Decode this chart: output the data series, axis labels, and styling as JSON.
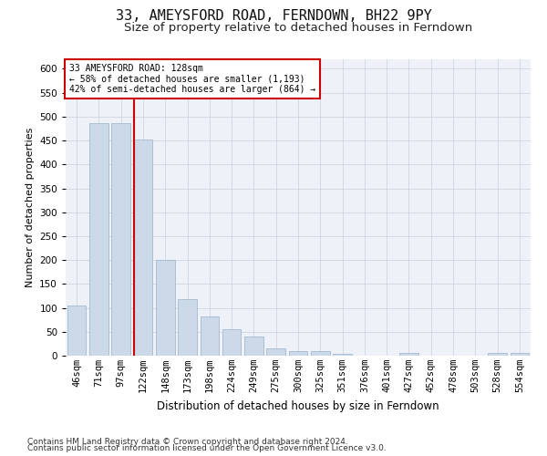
{
  "title1": "33, AMEYSFORD ROAD, FERNDOWN, BH22 9PY",
  "title2": "Size of property relative to detached houses in Ferndown",
  "xlabel": "Distribution of detached houses by size in Ferndown",
  "ylabel": "Number of detached properties",
  "categories": [
    "46sqm",
    "71sqm",
    "97sqm",
    "122sqm",
    "148sqm",
    "173sqm",
    "198sqm",
    "224sqm",
    "249sqm",
    "275sqm",
    "300sqm",
    "325sqm",
    "351sqm",
    "376sqm",
    "401sqm",
    "427sqm",
    "452sqm",
    "478sqm",
    "503sqm",
    "528sqm",
    "554sqm"
  ],
  "values": [
    105,
    487,
    487,
    452,
    200,
    119,
    82,
    56,
    40,
    15,
    10,
    10,
    3,
    0,
    0,
    5,
    0,
    0,
    0,
    6,
    6
  ],
  "bar_color": "#ccd9e8",
  "bar_edge_color": "#9ab0c8",
  "vline_color": "#cc0000",
  "annotation_text": "33 AMEYSFORD ROAD: 128sqm\n← 58% of detached houses are smaller (1,193)\n42% of semi-detached houses are larger (864) →",
  "annotation_box_color": "#ffffff",
  "annotation_box_edge": "#cc0000",
  "footer1": "Contains HM Land Registry data © Crown copyright and database right 2024.",
  "footer2": "Contains public sector information licensed under the Open Government Licence v3.0.",
  "ylim_max": 620,
  "yticks": [
    0,
    50,
    100,
    150,
    200,
    250,
    300,
    350,
    400,
    450,
    500,
    550,
    600
  ],
  "title1_fontsize": 11,
  "title2_fontsize": 9.5,
  "xlabel_fontsize": 8.5,
  "ylabel_fontsize": 8,
  "tick_fontsize": 7.5,
  "footer_fontsize": 6.5,
  "bg_color": "#eef2f8",
  "grid_color": "#c8d0dc"
}
